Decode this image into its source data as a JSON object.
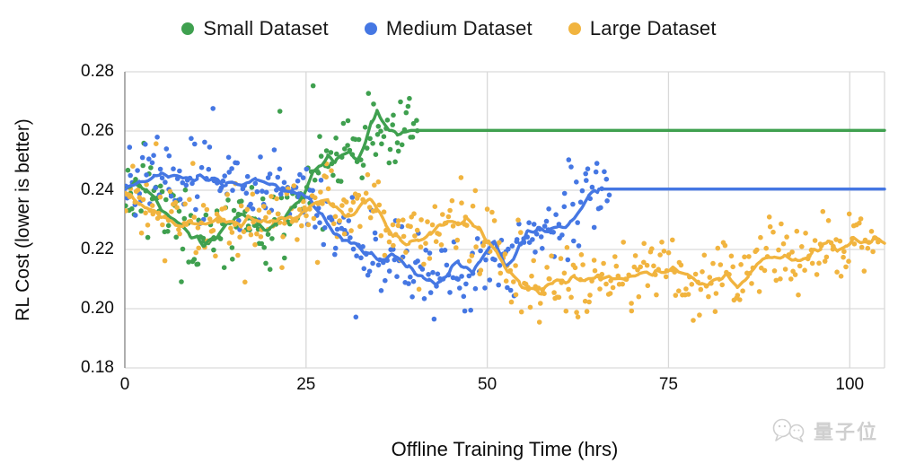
{
  "page": {
    "background": "#ffffff"
  },
  "legend": {
    "items": [
      {
        "label": "Small Dataset",
        "color": "#3fa04f"
      },
      {
        "label": "Medium Dataset",
        "color": "#4577e3"
      },
      {
        "label": "Large Dataset",
        "color": "#f1b43f"
      }
    ]
  },
  "watermark": {
    "text": "量子位",
    "icon": "chat-bubbles-icon",
    "color": "#c7c7c7"
  },
  "chart_data": {
    "type": "scatter",
    "title": "",
    "xlabel": "Offline Training Time (hrs)",
    "ylabel": "RL Cost (lower is better)",
    "xlim": [
      0,
      104.8
    ],
    "ylim": [
      0.18,
      0.28
    ],
    "grid": true,
    "legend_position": "top",
    "colors": {
      "grid": "#d9d9d9",
      "axis": "#999999",
      "text": "#0c0c0c"
    },
    "xticks": [
      {
        "v": 0,
        "label": "0"
      },
      {
        "v": 25,
        "label": "25"
      },
      {
        "v": 50,
        "label": "50"
      },
      {
        "v": 75,
        "label": "75"
      },
      {
        "v": 100,
        "label": "100"
      }
    ],
    "yticks": [
      {
        "v": 0.18,
        "label": "0.18"
      },
      {
        "v": 0.2,
        "label": "0.20"
      },
      {
        "v": 0.22,
        "label": "0.22"
      },
      {
        "v": 0.24,
        "label": "0.24"
      },
      {
        "v": 0.26,
        "label": "0.26"
      },
      {
        "v": 0.28,
        "label": "0.28"
      }
    ],
    "series": [
      {
        "name": "Small Dataset",
        "color": "#3fa04f",
        "scatter_range": [
          0,
          40.5
        ],
        "scatter_count": 175,
        "scatter_sigma": 0.0062,
        "seed": 11,
        "line_wiggle": 0.0013,
        "flat_from": 39.5,
        "trend": [
          [
            0,
            0.24
          ],
          [
            1.5,
            0.2425
          ],
          [
            3,
            0.2405
          ],
          [
            4,
            0.238
          ],
          [
            5,
            0.234
          ],
          [
            6,
            0.2315
          ],
          [
            7,
            0.2295
          ],
          [
            8,
            0.227
          ],
          [
            9,
            0.225
          ],
          [
            10,
            0.224
          ],
          [
            11,
            0.2215
          ],
          [
            12,
            0.2225
          ],
          [
            13,
            0.225
          ],
          [
            14,
            0.2285
          ],
          [
            15,
            0.2305
          ],
          [
            16,
            0.232
          ],
          [
            17,
            0.231
          ],
          [
            18,
            0.23
          ],
          [
            19,
            0.227
          ],
          [
            20,
            0.2265
          ],
          [
            21,
            0.229
          ],
          [
            22,
            0.231
          ],
          [
            23,
            0.2345
          ],
          [
            24,
            0.236
          ],
          [
            25,
            0.24
          ],
          [
            26,
            0.246
          ],
          [
            27,
            0.249
          ],
          [
            28,
            0.2515
          ],
          [
            29,
            0.25
          ],
          [
            30,
            0.2525
          ],
          [
            31,
            0.252
          ],
          [
            32,
            0.25
          ],
          [
            33,
            0.2555
          ],
          [
            34,
            0.263
          ],
          [
            34.8,
            0.2665
          ],
          [
            35.5,
            0.264
          ],
          [
            36.5,
            0.26
          ],
          [
            37.5,
            0.2585
          ],
          [
            38.5,
            0.26
          ],
          [
            39.5,
            0.2602
          ],
          [
            104.8,
            0.2602
          ]
        ]
      },
      {
        "name": "Medium Dataset",
        "color": "#4577e3",
        "scatter_range": [
          0,
          67
        ],
        "scatter_count": 275,
        "scatter_sigma": 0.0062,
        "seed": 22,
        "line_wiggle": 0.0013,
        "flat_from": 65.4,
        "trend": [
          [
            0,
            0.2395
          ],
          [
            2,
            0.243
          ],
          [
            4,
            0.245
          ],
          [
            5,
            0.2455
          ],
          [
            6,
            0.245
          ],
          [
            8,
            0.244
          ],
          [
            10,
            0.2445
          ],
          [
            12,
            0.244
          ],
          [
            14,
            0.242
          ],
          [
            16,
            0.2425
          ],
          [
            18,
            0.2435
          ],
          [
            20,
            0.242
          ],
          [
            22,
            0.24
          ],
          [
            24,
            0.2385
          ],
          [
            25,
            0.2375
          ],
          [
            26,
            0.2355
          ],
          [
            27,
            0.2325
          ],
          [
            28,
            0.2285
          ],
          [
            29,
            0.2255
          ],
          [
            30,
            0.2235
          ],
          [
            31,
            0.2225
          ],
          [
            32,
            0.222
          ],
          [
            33,
            0.2195
          ],
          [
            34,
            0.2185
          ],
          [
            35,
            0.216
          ],
          [
            36,
            0.217
          ],
          [
            37,
            0.2185
          ],
          [
            38,
            0.216
          ],
          [
            39,
            0.2145
          ],
          [
            40,
            0.2125
          ],
          [
            41,
            0.2105
          ],
          [
            42,
            0.2095
          ],
          [
            43,
            0.208
          ],
          [
            44,
            0.21
          ],
          [
            45,
            0.214
          ],
          [
            46,
            0.2155
          ],
          [
            47,
            0.2135
          ],
          [
            48,
            0.2115
          ],
          [
            49,
            0.216
          ],
          [
            50,
            0.22
          ],
          [
            51,
            0.222
          ],
          [
            52.5,
            0.2145
          ],
          [
            53.5,
            0.2165
          ],
          [
            54.5,
            0.2215
          ],
          [
            55.5,
            0.2255
          ],
          [
            57,
            0.2273
          ],
          [
            58.5,
            0.226
          ],
          [
            60,
            0.227
          ],
          [
            61.5,
            0.2295
          ],
          [
            63,
            0.235
          ],
          [
            64,
            0.238
          ],
          [
            65,
            0.24
          ],
          [
            65.4,
            0.2404
          ],
          [
            104.8,
            0.2404
          ]
        ]
      },
      {
        "name": "Large Dataset",
        "color": "#f1b43f",
        "scatter_range": [
          0,
          104
        ],
        "scatter_count": 430,
        "scatter_sigma": 0.0058,
        "seed": 33,
        "line_wiggle": 0.0013,
        "flat_from": null,
        "trend": [
          [
            0,
            0.2395
          ],
          [
            1,
            0.238
          ],
          [
            2,
            0.236
          ],
          [
            3,
            0.234
          ],
          [
            4,
            0.2325
          ],
          [
            5,
            0.231
          ],
          [
            6,
            0.23
          ],
          [
            7,
            0.229
          ],
          [
            8,
            0.2285
          ],
          [
            9,
            0.229
          ],
          [
            10,
            0.2285
          ],
          [
            11,
            0.229
          ],
          [
            12,
            0.2295
          ],
          [
            13,
            0.231
          ],
          [
            14,
            0.23
          ],
          [
            15,
            0.229
          ],
          [
            16,
            0.2285
          ],
          [
            17,
            0.2305
          ],
          [
            18,
            0.23
          ],
          [
            19,
            0.2295
          ],
          [
            20,
            0.229
          ],
          [
            21,
            0.23
          ],
          [
            22,
            0.2305
          ],
          [
            23,
            0.231
          ],
          [
            24,
            0.232
          ],
          [
            25,
            0.233
          ],
          [
            26,
            0.235
          ],
          [
            27,
            0.2365
          ],
          [
            28,
            0.236
          ],
          [
            29,
            0.2345
          ],
          [
            30,
            0.232
          ],
          [
            31,
            0.2305
          ],
          [
            32,
            0.233
          ],
          [
            33,
            0.236
          ],
          [
            33.8,
            0.2367
          ],
          [
            35,
            0.233
          ],
          [
            36,
            0.229
          ],
          [
            37,
            0.225
          ],
          [
            38,
            0.223
          ],
          [
            39.3,
            0.2218
          ],
          [
            40.5,
            0.223
          ],
          [
            42,
            0.2255
          ],
          [
            43.5,
            0.228
          ],
          [
            44.5,
            0.2293
          ],
          [
            46,
            0.229
          ],
          [
            47,
            0.23
          ],
          [
            48,
            0.2285
          ],
          [
            49,
            0.2264
          ],
          [
            50,
            0.223
          ],
          [
            51.5,
            0.2185
          ],
          [
            53,
            0.2124
          ],
          [
            54.5,
            0.2085
          ],
          [
            56,
            0.2065
          ],
          [
            57.5,
            0.2052
          ],
          [
            59,
            0.2085
          ],
          [
            60.5,
            0.209
          ],
          [
            62,
            0.2105
          ],
          [
            63.5,
            0.2095
          ],
          [
            65,
            0.2103
          ],
          [
            67,
            0.2108
          ],
          [
            69,
            0.21
          ],
          [
            71,
            0.2118
          ],
          [
            73,
            0.2125
          ],
          [
            75.5,
            0.2133
          ],
          [
            77.5,
            0.211
          ],
          [
            79.5,
            0.208
          ],
          [
            80.5,
            0.2076
          ],
          [
            82,
            0.21
          ],
          [
            83,
            0.2112
          ],
          [
            84.5,
            0.2079
          ],
          [
            86,
            0.211
          ],
          [
            87.5,
            0.216
          ],
          [
            89.3,
            0.2179
          ],
          [
            91,
            0.2175
          ],
          [
            92.5,
            0.217
          ],
          [
            93.5,
            0.2164
          ],
          [
            95,
            0.219
          ],
          [
            96,
            0.2205
          ],
          [
            97,
            0.223
          ],
          [
            98.3,
            0.2197
          ],
          [
            99.5,
            0.2215
          ],
          [
            100.5,
            0.2239
          ],
          [
            101.5,
            0.2228
          ],
          [
            103,
            0.223
          ],
          [
            104.8,
            0.223
          ]
        ]
      }
    ]
  }
}
